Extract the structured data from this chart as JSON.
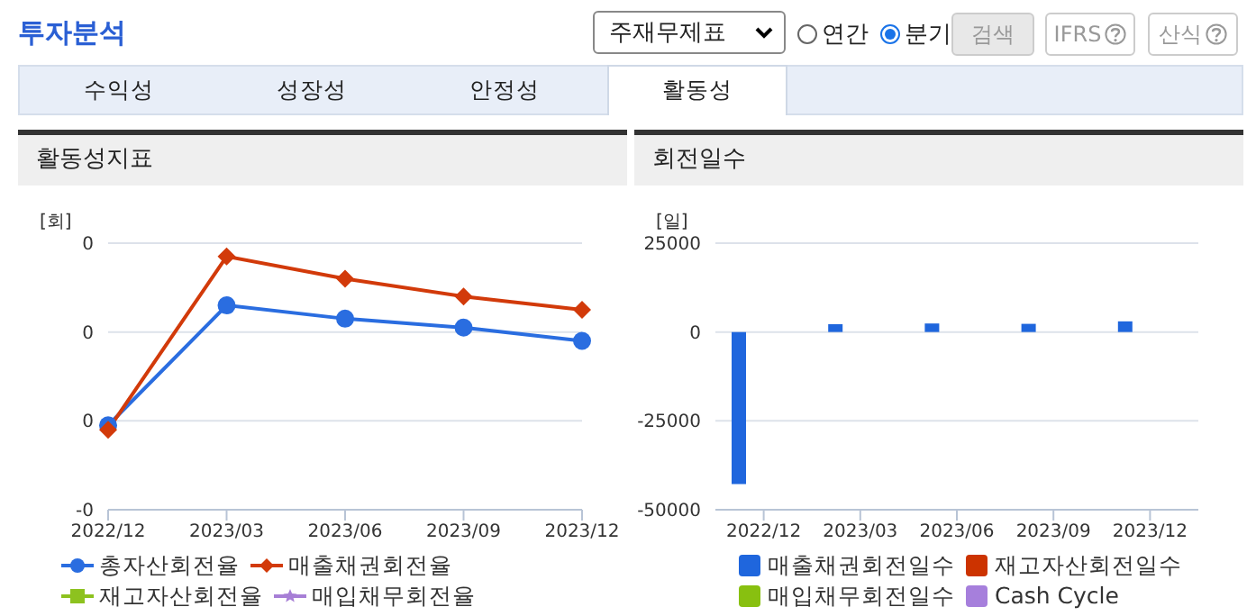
{
  "chart_data": [
    {
      "type": "other",
      "title": "투자분석",
      "annotations": [
        "주재무제표",
        "연간",
        "분기",
        "검색",
        "IFRS",
        "산식",
        "수익성",
        "성장성",
        "안정성",
        "활동성"
      ]
    },
    {
      "type": "line",
      "title": "활동성지표",
      "ylabel": "[회]",
      "categories": [
        "2022/12",
        "2023/03",
        "2023/06",
        "2023/09",
        "2023/12"
      ],
      "ylim": [
        -0.2,
        0.4
      ],
      "yticks": [
        {
          "value": -0.2,
          "label": "-0"
        },
        {
          "value": 0,
          "label": "0"
        },
        {
          "value": 0.2,
          "label": "0"
        },
        {
          "value": 0.4,
          "label": "0"
        }
      ],
      "grid": "y",
      "legend": "bottom",
      "series": [
        {
          "name": "총자산회전율",
          "color": "#2a6de0",
          "marker": "circle",
          "values": [
            -0.01,
            0.26,
            0.23,
            0.21,
            0.18
          ]
        },
        {
          "name": "매출채권회전율",
          "color": "#d23a0a",
          "marker": "diamond",
          "values": [
            -0.02,
            0.37,
            0.32,
            0.28,
            0.25
          ]
        },
        {
          "name": "재고자산회전율",
          "color": "#8dc21f",
          "marker": "square",
          "values": [
            null,
            null,
            null,
            null,
            null
          ]
        },
        {
          "name": "매입채무회전율",
          "color": "#a77fd6",
          "marker": "star",
          "values": [
            null,
            null,
            null,
            null,
            null
          ]
        }
      ]
    },
    {
      "type": "bar",
      "title": "회전일수",
      "ylabel": "[일]",
      "categories": [
        "2022/12",
        "2023/03",
        "2023/06",
        "2023/09",
        "2023/12"
      ],
      "ylim": [
        -50000,
        25000
      ],
      "yticks": [
        25000,
        0,
        -25000,
        -50000
      ],
      "grid": "y",
      "legend": "bottom",
      "series": [
        {
          "name": "매출채권회전일수",
          "color": "#1f66dd",
          "values": [
            -42800,
            2200,
            2400,
            2300,
            3000
          ]
        },
        {
          "name": "재고자산회전일수",
          "color": "#cc3300",
          "values": [
            null,
            null,
            null,
            null,
            null
          ]
        },
        {
          "name": "매입채무회전일수",
          "color": "#88c010",
          "values": [
            null,
            null,
            null,
            null,
            null
          ]
        },
        {
          "name": "Cash Cycle",
          "color": "#a67fdc",
          "values": [
            null,
            null,
            null,
            null,
            null
          ]
        }
      ]
    }
  ]
}
